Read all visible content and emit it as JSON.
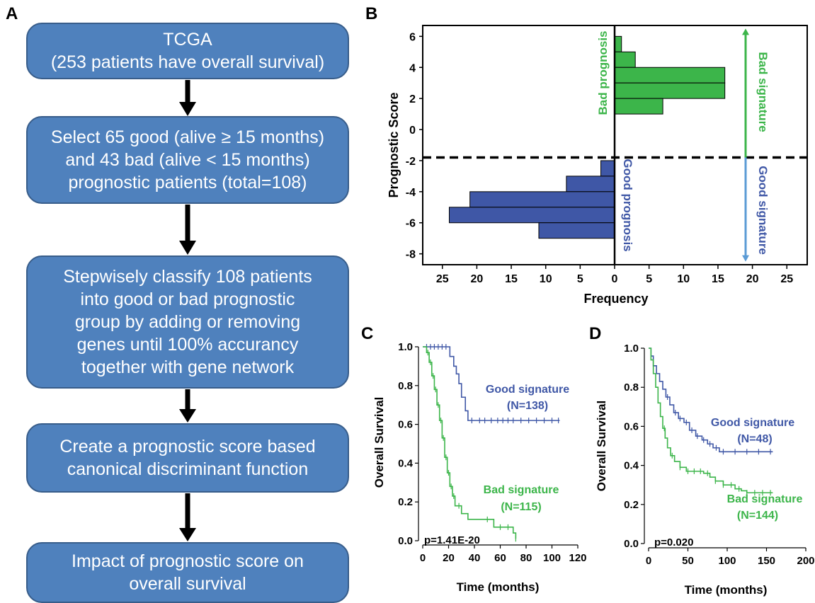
{
  "panel_letters": {
    "a": "A",
    "b": "B",
    "c": "C",
    "d": "D"
  },
  "flowchart": {
    "boxes": [
      {
        "lines": [
          "TCGA",
          "(253 patients have overall survival)"
        ]
      },
      {
        "lines": [
          "Select 65 good (alive ≥ 15 months)",
          "and 43 bad (alive < 15 months)",
          "prognostic patients  (total=108)"
        ]
      },
      {
        "lines": [
          "Stepwisely classify 108 patients",
          "into good or  bad prognostic",
          "group by adding or removing",
          "genes until 100% accurancy",
          "together with gene network"
        ]
      },
      {
        "lines": [
          "Create a prognostic score based",
          "canonical discriminant function"
        ]
      },
      {
        "lines": [
          "Impact of prognostic score on",
          "overall survival"
        ]
      }
    ]
  },
  "colors": {
    "green": "#3cb54a",
    "blue": "#3f57a6",
    "lightblue": "#5b9bd5",
    "flowbox": "#4f81bd",
    "flowborder": "#385d8a"
  },
  "chart_data": [
    {
      "id": "B",
      "type": "bar",
      "orientation": "horizontal-back-to-back",
      "ylabel": "Prognostic Score",
      "xlabel": "Frequency",
      "ylim": [
        -8.7,
        6.7
      ],
      "xlim_left": [
        28,
        0
      ],
      "xlim_right": [
        0,
        28
      ],
      "yticks": [
        6,
        4,
        2,
        0,
        -2,
        -4,
        -6,
        -8
      ],
      "xticks_left": [
        25,
        20,
        15,
        10,
        5,
        0
      ],
      "xticks_right": [
        5,
        10,
        15,
        20,
        25
      ],
      "cutoff": -1.8,
      "series": [
        {
          "name": "Bad prognosis",
          "side": "right",
          "color": "green",
          "bins": [
            {
              "y0": 5.0,
              "y1": 6.0,
              "count": 1
            },
            {
              "y0": 4.0,
              "y1": 5.0,
              "count": 3
            },
            {
              "y0": 3.0,
              "y1": 4.0,
              "count": 16
            },
            {
              "y0": 2.0,
              "y1": 3.0,
              "count": 16
            },
            {
              "y0": 1.0,
              "y1": 2.0,
              "count": 7
            }
          ]
        },
        {
          "name": "Good prognosis",
          "side": "left",
          "color": "blue",
          "bins": [
            {
              "y0": -3.0,
              "y1": -2.0,
              "count": 2
            },
            {
              "y0": -4.0,
              "y1": -3.0,
              "count": 7
            },
            {
              "y0": -5.0,
              "y1": -4.0,
              "count": 21
            },
            {
              "y0": -6.0,
              "y1": -5.0,
              "count": 24
            },
            {
              "y0": -7.0,
              "y1": -6.0,
              "count": 11
            }
          ]
        }
      ],
      "arrows": [
        {
          "label": "Bad signature",
          "color": "green",
          "from": -1.8,
          "to": 6.5
        },
        {
          "label": "Good signature",
          "color": "lightblue",
          "from": -1.8,
          "to": -8.5
        }
      ]
    },
    {
      "id": "C",
      "type": "line",
      "xlabel": "Time (months)",
      "ylabel": "Overall Survival",
      "xlim": [
        0,
        120
      ],
      "ylim": [
        0,
        1.0
      ],
      "xticks": [
        0,
        20,
        40,
        60,
        80,
        100,
        120
      ],
      "yticks": [
        0.0,
        0.2,
        0.4,
        0.6,
        0.8,
        1.0
      ],
      "pvalue": "p=1.41E-20",
      "series": [
        {
          "name": "Good signature",
          "n": "(N=138)",
          "color": "blue",
          "x": [
            0,
            20,
            21,
            24,
            26,
            28,
            30,
            33,
            35,
            106
          ],
          "y": [
            1.0,
            1.0,
            0.95,
            0.9,
            0.86,
            0.81,
            0.74,
            0.67,
            0.62,
            0.62
          ],
          "censor": [
            3,
            6,
            9,
            12,
            15,
            18,
            38,
            44,
            48,
            53,
            58,
            62,
            66,
            70,
            76,
            82,
            88,
            94,
            100,
            105
          ]
        },
        {
          "name": "Bad signature",
          "n": "(N=115)",
          "color": "green",
          "x": [
            0,
            3,
            5,
            7,
            9,
            11,
            13,
            15,
            17,
            19,
            21,
            23,
            25,
            30,
            35,
            48,
            55,
            70,
            72
          ],
          "y": [
            1.0,
            0.97,
            0.92,
            0.85,
            0.78,
            0.7,
            0.62,
            0.53,
            0.43,
            0.35,
            0.28,
            0.23,
            0.18,
            0.14,
            0.11,
            0.11,
            0.07,
            0.04,
            0.01
          ],
          "censor": [
            4,
            6,
            8,
            10,
            12,
            14,
            16,
            18,
            20,
            22,
            24,
            28,
            50,
            60,
            66,
            72
          ]
        }
      ]
    },
    {
      "id": "D",
      "type": "line",
      "xlabel": "Time (months)",
      "ylabel": "Overall Survival",
      "xlim": [
        0,
        200
      ],
      "ylim": [
        0,
        1.0
      ],
      "xticks": [
        0,
        50,
        100,
        150,
        200
      ],
      "yticks": [
        0.0,
        0.2,
        0.4,
        0.6,
        0.8,
        1.0
      ],
      "pvalue": "p=0.020",
      "series": [
        {
          "name": "Good signature",
          "n": "(N=48)",
          "color": "blue",
          "x": [
            0,
            3,
            6,
            10,
            14,
            18,
            22,
            27,
            32,
            38,
            45,
            52,
            60,
            68,
            75,
            82,
            90,
            158
          ],
          "y": [
            1.0,
            0.96,
            0.91,
            0.87,
            0.83,
            0.79,
            0.75,
            0.71,
            0.67,
            0.64,
            0.62,
            0.58,
            0.55,
            0.53,
            0.51,
            0.49,
            0.47,
            0.47
          ],
          "censor": [
            24,
            34,
            40,
            48,
            55,
            62,
            70,
            78,
            86,
            95,
            110,
            125,
            140,
            155
          ]
        },
        {
          "name": "Bad signature",
          "n": "(N=144)",
          "color": "green",
          "x": [
            0,
            3,
            6,
            9,
            12,
            15,
            18,
            21,
            24,
            28,
            33,
            40,
            48,
            55,
            62,
            70,
            78,
            85,
            95,
            110,
            118,
            125,
            158
          ],
          "y": [
            1.0,
            0.94,
            0.87,
            0.8,
            0.72,
            0.65,
            0.59,
            0.54,
            0.49,
            0.45,
            0.42,
            0.39,
            0.37,
            0.37,
            0.37,
            0.36,
            0.34,
            0.32,
            0.3,
            0.28,
            0.27,
            0.26,
            0.26
          ],
          "censor": [
            20,
            30,
            40,
            50,
            58,
            66,
            75,
            85,
            95,
            105,
            115,
            125,
            135,
            145,
            155
          ]
        }
      ]
    }
  ]
}
